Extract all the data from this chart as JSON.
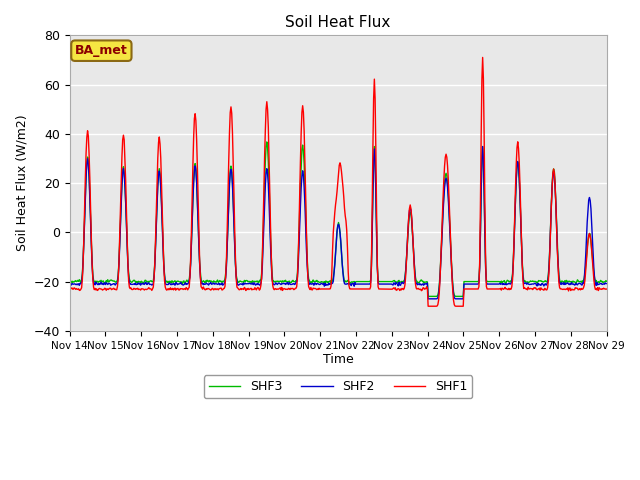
{
  "title": "Soil Heat Flux",
  "ylabel": "Soil Heat Flux (W/m2)",
  "xlabel": "Time",
  "ylim": [
    -40,
    80
  ],
  "yticks": [
    -40,
    -20,
    0,
    20,
    40,
    60,
    80
  ],
  "xlim": [
    0,
    360
  ],
  "xtick_positions": [
    0,
    24,
    48,
    72,
    96,
    120,
    144,
    168,
    192,
    216,
    240,
    264,
    288,
    312,
    336,
    360
  ],
  "xtick_labels": [
    "Nov 14",
    "Nov 15",
    "Nov 16",
    "Nov 17",
    "Nov 18",
    "Nov 19",
    "Nov 20",
    "Nov 21",
    "Nov 22",
    "Nov 23",
    "Nov 24",
    "Nov 25",
    "Nov 26",
    "Nov 27",
    "Nov 28",
    "Nov 29"
  ],
  "shf1_color": "#ff0000",
  "shf2_color": "#0000cc",
  "shf3_color": "#00bb00",
  "legend_label1": "SHF1",
  "legend_label2": "SHF2",
  "legend_label3": "SHF3",
  "annotation_text": "BA_met",
  "bg_color": "#e8e8e8",
  "line_width": 1.0,
  "peaks_shf1": [
    43,
    41,
    40,
    50,
    53,
    55,
    53,
    28,
    64,
    12,
    33,
    73,
    38,
    27,
    0
  ],
  "peaks_shf2": [
    31,
    27,
    26,
    28,
    27,
    27,
    26,
    4,
    35,
    11,
    23,
    36,
    30,
    26,
    15
  ],
  "peaks_shf3": [
    32,
    28,
    27,
    29,
    28,
    38,
    37,
    4,
    36,
    9,
    25,
    36,
    30,
    27,
    0
  ],
  "night_shf1": -23,
  "night_shf2": -21,
  "night_shf3": -20,
  "deep_night_shf1": -30,
  "deep_night_shf2": -27,
  "deep_night_shf3": -26
}
